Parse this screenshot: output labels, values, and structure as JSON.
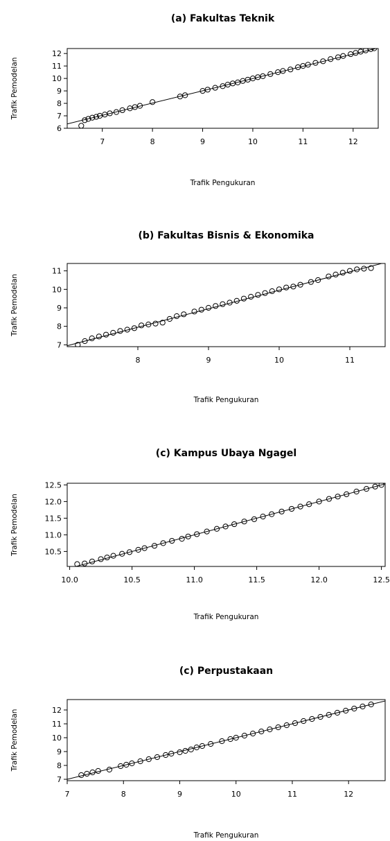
{
  "chart_data": [
    {
      "type": "scatter",
      "title": "(a) Fakultas Teknik",
      "xlabel": "Trafik Pengukuran",
      "ylabel": "Trafik Pemodelan",
      "xlim": [
        6.3,
        12.5
      ],
      "ylim": [
        6,
        12.4
      ],
      "xticks": [
        "7",
        "8",
        "9",
        "10",
        "11",
        "12"
      ],
      "xtick_values": [
        7,
        8,
        9,
        10,
        11,
        12
      ],
      "yticks": [
        "6",
        "7",
        "8",
        "9",
        "10",
        "11",
        "12"
      ],
      "ytick_values": [
        6,
        7,
        8,
        9,
        10,
        11,
        12
      ],
      "reference_line": [
        [
          6.3,
          6.35
        ],
        [
          12.5,
          12.45
        ]
      ],
      "x": [
        6.58,
        6.65,
        6.72,
        6.8,
        6.88,
        6.95,
        7.05,
        7.15,
        7.28,
        7.4,
        7.55,
        7.65,
        7.75,
        8.0,
        8.55,
        8.65,
        9.0,
        9.1,
        9.25,
        9.4,
        9.5,
        9.6,
        9.7,
        9.8,
        9.9,
        10.0,
        10.1,
        10.2,
        10.35,
        10.5,
        10.6,
        10.75,
        10.9,
        11.0,
        11.1,
        11.25,
        11.4,
        11.55,
        11.7,
        11.8,
        11.95,
        12.05,
        12.15,
        12.25,
        12.35,
        12.42
      ],
      "y": [
        6.2,
        6.65,
        6.75,
        6.85,
        6.92,
        7.0,
        7.1,
        7.2,
        7.3,
        7.45,
        7.6,
        7.7,
        7.8,
        8.1,
        8.55,
        8.65,
        9.0,
        9.1,
        9.25,
        9.38,
        9.5,
        9.6,
        9.68,
        9.8,
        9.9,
        10.0,
        10.1,
        10.18,
        10.35,
        10.5,
        10.6,
        10.72,
        10.9,
        11.0,
        11.1,
        11.25,
        11.38,
        11.55,
        11.7,
        11.8,
        11.95,
        12.05,
        12.15,
        12.25,
        12.35,
        12.42
      ]
    },
    {
      "type": "scatter",
      "title": "(b) Fakultas Bisnis & Ekonomika",
      "xlabel": "Trafik Pengukuran",
      "ylabel": "Trafik Pemodelan",
      "xlim": [
        7.0,
        11.5
      ],
      "ylim": [
        6.9,
        11.4
      ],
      "xticks": [
        "8",
        "9",
        "10",
        "11"
      ],
      "xtick_values": [
        8,
        9,
        10,
        11
      ],
      "yticks": [
        "7",
        "8",
        "9",
        "10",
        "11"
      ],
      "ytick_values": [
        7,
        8,
        9,
        10,
        11
      ],
      "reference_line": [
        [
          7.0,
          6.95
        ],
        [
          11.5,
          11.45
        ]
      ],
      "x": [
        7.15,
        7.25,
        7.35,
        7.45,
        7.55,
        7.65,
        7.75,
        7.85,
        7.95,
        8.05,
        8.15,
        8.25,
        8.35,
        8.45,
        8.55,
        8.65,
        8.8,
        8.9,
        9.0,
        9.1,
        9.2,
        9.3,
        9.4,
        9.5,
        9.6,
        9.7,
        9.8,
        9.9,
        10.0,
        10.1,
        10.2,
        10.3,
        10.45,
        10.55,
        10.7,
        10.8,
        10.9,
        11.0,
        11.1,
        11.2,
        11.3
      ],
      "y": [
        7.0,
        7.2,
        7.35,
        7.45,
        7.55,
        7.65,
        7.75,
        7.82,
        7.9,
        8.05,
        8.1,
        8.15,
        8.2,
        8.4,
        8.55,
        8.65,
        8.8,
        8.9,
        9.0,
        9.1,
        9.2,
        9.28,
        9.38,
        9.5,
        9.6,
        9.7,
        9.8,
        9.9,
        10.0,
        10.1,
        10.15,
        10.25,
        10.4,
        10.5,
        10.7,
        10.8,
        10.9,
        11.0,
        11.08,
        11.12,
        11.15
      ]
    },
    {
      "type": "scatter",
      "title": "(c) Kampus Ubaya Ngagel",
      "xlabel": "Trafik Pengukuran",
      "ylabel": "Trafik Pemodelan",
      "xlim": [
        9.98,
        12.53
      ],
      "ylim": [
        10.05,
        12.55
      ],
      "xticks": [
        "10.0",
        "10.5",
        "11.0",
        "11.5",
        "12.0",
        "12.5"
      ],
      "xtick_values": [
        10.0,
        10.5,
        11.0,
        11.5,
        12.0,
        12.5
      ],
      "yticks": [
        "10.5",
        "11.0",
        "11.5",
        "12.0",
        "12.5"
      ],
      "ytick_values": [
        10.5,
        11.0,
        11.5,
        12.0,
        12.5
      ],
      "reference_line": [
        [
          9.98,
          9.98
        ],
        [
          12.53,
          12.53
        ]
      ],
      "x": [
        10.06,
        10.12,
        10.18,
        10.25,
        10.3,
        10.35,
        10.42,
        10.48,
        10.55,
        10.6,
        10.68,
        10.75,
        10.82,
        10.9,
        10.95,
        11.02,
        11.1,
        11.18,
        11.25,
        11.32,
        11.4,
        11.48,
        11.55,
        11.62,
        11.7,
        11.78,
        11.85,
        11.92,
        12.0,
        12.08,
        12.15,
        12.22,
        12.3,
        12.38,
        12.45,
        12.5
      ],
      "y": [
        10.12,
        10.14,
        10.2,
        10.27,
        10.32,
        10.37,
        10.43,
        10.48,
        10.55,
        10.6,
        10.67,
        10.75,
        10.82,
        10.88,
        10.95,
        11.02,
        11.1,
        11.18,
        11.25,
        11.32,
        11.4,
        11.47,
        11.55,
        11.62,
        11.7,
        11.78,
        11.85,
        11.92,
        12.0,
        12.08,
        12.15,
        12.22,
        12.3,
        12.38,
        12.45,
        12.5
      ]
    },
    {
      "type": "scatter",
      "title": "(c) Perpustakaan",
      "xlabel": "Trafik Pengukuran",
      "ylabel": "Trafik Pemodelan",
      "xlim": [
        7.0,
        12.65
      ],
      "ylim": [
        6.9,
        12.75
      ],
      "xticks": [
        "7",
        "8",
        "9",
        "10",
        "11",
        "12"
      ],
      "xtick_values": [
        7,
        8,
        9,
        10,
        11,
        12
      ],
      "yticks": [
        "7",
        "8",
        "9",
        "10",
        "11",
        "12"
      ],
      "ytick_values": [
        7,
        8,
        9,
        10,
        11,
        12
      ],
      "reference_line": [
        [
          7.0,
          7.0
        ],
        [
          12.65,
          12.65
        ]
      ],
      "x": [
        7.25,
        7.35,
        7.45,
        7.55,
        7.75,
        7.95,
        8.05,
        8.15,
        8.3,
        8.45,
        8.6,
        8.75,
        8.85,
        9.0,
        9.1,
        9.2,
        9.3,
        9.4,
        9.55,
        9.75,
        9.9,
        10.0,
        10.15,
        10.3,
        10.45,
        10.6,
        10.75,
        10.9,
        11.05,
        11.2,
        11.35,
        11.5,
        11.65,
        11.8,
        11.95,
        12.1,
        12.25,
        12.4
      ],
      "y": [
        7.3,
        7.4,
        7.5,
        7.6,
        7.7,
        7.95,
        8.05,
        8.15,
        8.3,
        8.45,
        8.6,
        8.75,
        8.85,
        8.95,
        9.05,
        9.15,
        9.3,
        9.4,
        9.55,
        9.75,
        9.9,
        10.0,
        10.15,
        10.3,
        10.45,
        10.6,
        10.75,
        10.9,
        11.05,
        11.2,
        11.35,
        11.5,
        11.65,
        11.8,
        11.95,
        12.1,
        12.25,
        12.4
      ]
    }
  ]
}
